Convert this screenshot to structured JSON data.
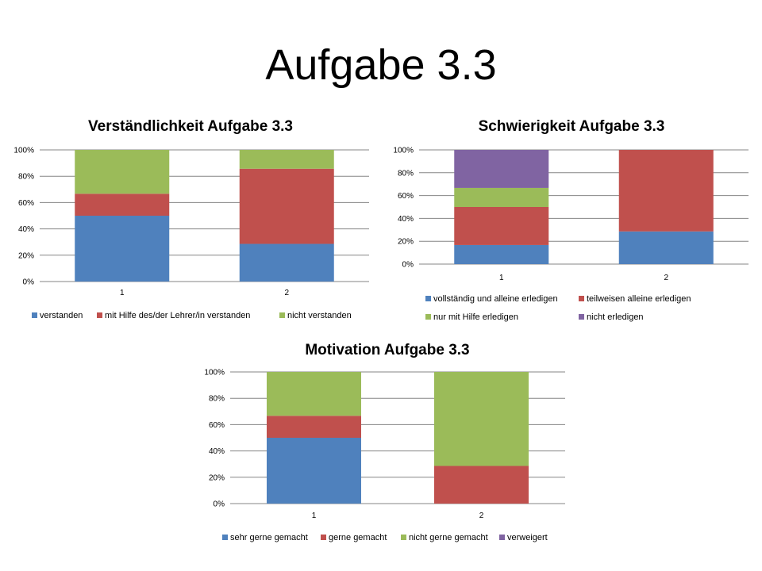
{
  "slide": {
    "title": "Aufgabe 3.3"
  },
  "chart_data": [
    {
      "type": "bar",
      "stacked": "percent",
      "title": "Verständlichkeit Aufgabe 3.3",
      "categories": [
        "1",
        "2"
      ],
      "series": [
        {
          "name": "verstanden",
          "values": [
            50,
            28.6
          ],
          "color": "#4F81BD"
        },
        {
          "name": "mit Hilfe des/der Lehrer/in verstanden",
          "values": [
            16.7,
            57.1
          ],
          "color": "#C0504D"
        },
        {
          "name": "nicht verstanden",
          "values": [
            33.3,
            14.3
          ],
          "color": "#9BBB59"
        }
      ],
      "yticks": [
        "0%",
        "20%",
        "40%",
        "60%",
        "80%",
        "100%"
      ],
      "ylim": [
        0,
        100
      ],
      "grid": true,
      "legend": "bottom"
    },
    {
      "type": "bar",
      "stacked": "percent",
      "title": "Schwierigkeit Aufgabe 3.3",
      "categories": [
        "1",
        "2"
      ],
      "series": [
        {
          "name": "vollständig und alleine erledigen",
          "values": [
            16.7,
            28.6
          ],
          "color": "#4F81BD"
        },
        {
          "name": "teilweisen alleine erledigen",
          "values": [
            33.3,
            71.4
          ],
          "color": "#C0504D"
        },
        {
          "name": "nur mit Hilfe erledigen",
          "values": [
            16.7,
            0
          ],
          "color": "#9BBB59"
        },
        {
          "name": "nicht erledigen",
          "values": [
            33.3,
            0
          ],
          "color": "#8064A2"
        }
      ],
      "yticks": [
        "0%",
        "20%",
        "40%",
        "60%",
        "80%",
        "100%"
      ],
      "ylim": [
        0,
        100
      ],
      "grid": true,
      "legend": "bottom"
    },
    {
      "type": "bar",
      "stacked": "percent",
      "title": "Motivation Aufgabe 3.3",
      "categories": [
        "1",
        "2"
      ],
      "series": [
        {
          "name": "sehr gerne gemacht",
          "values": [
            50,
            0
          ],
          "color": "#4F81BD"
        },
        {
          "name": "gerne gemacht",
          "values": [
            16.7,
            28.6
          ],
          "color": "#C0504D"
        },
        {
          "name": "nicht gerne gemacht",
          "values": [
            33.3,
            71.4
          ],
          "color": "#9BBB59"
        },
        {
          "name": "verweigert",
          "values": [
            0,
            0
          ],
          "color": "#8064A2"
        }
      ],
      "yticks": [
        "0%",
        "20%",
        "40%",
        "60%",
        "80%",
        "100%"
      ],
      "ylim": [
        0,
        100
      ],
      "grid": true,
      "legend": "bottom"
    }
  ]
}
